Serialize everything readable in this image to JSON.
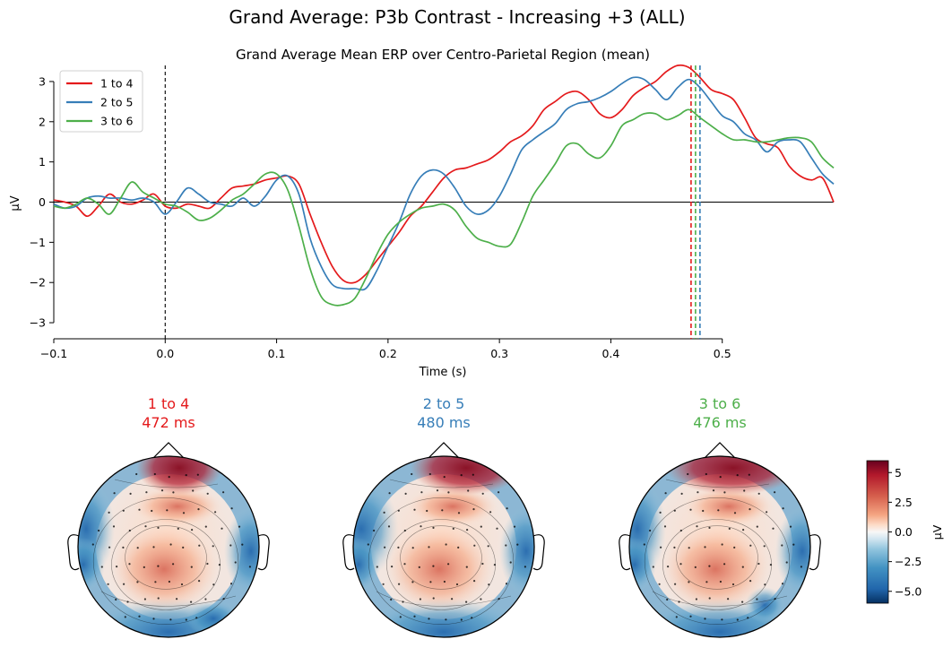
{
  "suptitle": "Grand Average: P3b Contrast - Increasing +3 (ALL)",
  "chart_data": [
    {
      "type": "line",
      "title": "Grand Average Mean ERP over Centro-Parietal Region (mean)",
      "xlabel": "Time (s)",
      "ylabel": "µV",
      "xlim": [
        -0.1,
        0.6
      ],
      "ylim": [
        -3.4,
        3.4
      ],
      "xticks": [
        -0.1,
        0.0,
        0.1,
        0.2,
        0.3,
        0.4,
        0.5
      ],
      "xtick_labels": [
        "−0.1",
        "0.0",
        "0.1",
        "0.2",
        "0.3",
        "0.4",
        "0.5"
      ],
      "yticks": [
        -3,
        -2,
        -1,
        0,
        1,
        2,
        3
      ],
      "ytick_labels": [
        "−3",
        "−2",
        "−1",
        "0",
        "1",
        "2",
        "3"
      ],
      "legend_position": "top-left",
      "stimulus_onset_marker": 0.0,
      "series": [
        {
          "name": "1 to 4",
          "color": "#e41a1c",
          "peak_latency": 0.472,
          "x": [
            -0.1,
            -0.09,
            -0.08,
            -0.07,
            -0.06,
            -0.05,
            -0.04,
            -0.03,
            -0.02,
            -0.01,
            0.0,
            0.01,
            0.02,
            0.03,
            0.04,
            0.05,
            0.06,
            0.07,
            0.08,
            0.09,
            0.1,
            0.11,
            0.12,
            0.13,
            0.14,
            0.15,
            0.16,
            0.17,
            0.18,
            0.19,
            0.2,
            0.21,
            0.22,
            0.23,
            0.24,
            0.25,
            0.26,
            0.27,
            0.28,
            0.29,
            0.3,
            0.31,
            0.32,
            0.33,
            0.34,
            0.35,
            0.36,
            0.37,
            0.38,
            0.39,
            0.4,
            0.41,
            0.42,
            0.43,
            0.44,
            0.45,
            0.46,
            0.47,
            0.48,
            0.49,
            0.5,
            0.51,
            0.52,
            0.53,
            0.54,
            0.55,
            0.56,
            0.57,
            0.58,
            0.59,
            0.6
          ],
          "y": [
            0.05,
            0.0,
            -0.1,
            -0.35,
            -0.1,
            0.2,
            0.0,
            -0.05,
            0.05,
            0.2,
            -0.1,
            -0.15,
            -0.05,
            -0.1,
            -0.15,
            0.1,
            0.35,
            0.4,
            0.45,
            0.55,
            0.6,
            0.65,
            0.45,
            -0.3,
            -1.0,
            -1.6,
            -1.95,
            -2.0,
            -1.8,
            -1.45,
            -1.1,
            -0.75,
            -0.35,
            -0.1,
            0.25,
            0.6,
            0.8,
            0.85,
            0.95,
            1.05,
            1.25,
            1.5,
            1.65,
            1.9,
            2.3,
            2.5,
            2.7,
            2.75,
            2.55,
            2.2,
            2.1,
            2.3,
            2.65,
            2.85,
            3.0,
            3.25,
            3.4,
            3.35,
            3.1,
            2.8,
            2.7,
            2.55,
            2.1,
            1.6,
            1.45,
            1.35,
            0.9,
            0.65,
            0.55,
            0.6,
            0.0
          ]
        },
        {
          "name": "2 to 5",
          "color": "#377eb8",
          "peak_latency": 0.48,
          "x": [
            -0.1,
            -0.09,
            -0.08,
            -0.07,
            -0.06,
            -0.05,
            -0.04,
            -0.03,
            -0.02,
            -0.01,
            0.0,
            0.01,
            0.02,
            0.03,
            0.04,
            0.05,
            0.06,
            0.07,
            0.08,
            0.09,
            0.1,
            0.11,
            0.12,
            0.13,
            0.14,
            0.15,
            0.16,
            0.17,
            0.18,
            0.19,
            0.2,
            0.21,
            0.22,
            0.23,
            0.24,
            0.25,
            0.26,
            0.27,
            0.28,
            0.29,
            0.3,
            0.31,
            0.32,
            0.33,
            0.34,
            0.35,
            0.36,
            0.37,
            0.38,
            0.39,
            0.4,
            0.41,
            0.42,
            0.43,
            0.44,
            0.45,
            0.46,
            0.47,
            0.48,
            0.49,
            0.5,
            0.51,
            0.52,
            0.53,
            0.54,
            0.55,
            0.56,
            0.57,
            0.58,
            0.59,
            0.6
          ],
          "y": [
            -0.05,
            -0.15,
            -0.1,
            0.1,
            0.15,
            0.1,
            0.1,
            0.05,
            0.1,
            0.0,
            -0.3,
            0.0,
            0.35,
            0.2,
            0.0,
            -0.05,
            -0.1,
            0.1,
            -0.1,
            0.15,
            0.55,
            0.65,
            0.2,
            -0.9,
            -1.6,
            -2.05,
            -2.15,
            -2.15,
            -2.15,
            -1.7,
            -1.1,
            -0.5,
            0.2,
            0.65,
            0.8,
            0.7,
            0.35,
            -0.1,
            -0.3,
            -0.2,
            0.15,
            0.7,
            1.3,
            1.55,
            1.75,
            1.95,
            2.3,
            2.45,
            2.5,
            2.6,
            2.75,
            2.95,
            3.1,
            3.05,
            2.8,
            2.55,
            2.85,
            3.05,
            2.85,
            2.5,
            2.15,
            2.0,
            1.7,
            1.55,
            1.25,
            1.5,
            1.55,
            1.5,
            1.1,
            0.7,
            0.45
          ]
        },
        {
          "name": "3 to 6",
          "color": "#4daf4a",
          "peak_latency": 0.476,
          "x": [
            -0.1,
            -0.09,
            -0.08,
            -0.07,
            -0.06,
            -0.05,
            -0.04,
            -0.03,
            -0.02,
            -0.01,
            0.0,
            0.01,
            0.02,
            0.03,
            0.04,
            0.05,
            0.06,
            0.07,
            0.08,
            0.09,
            0.1,
            0.11,
            0.12,
            0.13,
            0.14,
            0.15,
            0.16,
            0.17,
            0.18,
            0.19,
            0.2,
            0.21,
            0.22,
            0.23,
            0.24,
            0.25,
            0.26,
            0.27,
            0.28,
            0.29,
            0.3,
            0.31,
            0.32,
            0.33,
            0.34,
            0.35,
            0.36,
            0.37,
            0.38,
            0.39,
            0.4,
            0.41,
            0.42,
            0.43,
            0.44,
            0.45,
            0.46,
            0.47,
            0.48,
            0.49,
            0.5,
            0.51,
            0.52,
            0.53,
            0.54,
            0.55,
            0.56,
            0.57,
            0.58,
            0.59,
            0.6
          ],
          "y": [
            -0.1,
            -0.15,
            -0.05,
            0.1,
            -0.05,
            -0.3,
            0.1,
            0.5,
            0.25,
            0.1,
            -0.05,
            -0.1,
            -0.25,
            -0.45,
            -0.4,
            -0.2,
            0.05,
            0.2,
            0.45,
            0.7,
            0.7,
            0.3,
            -0.6,
            -1.65,
            -2.35,
            -2.55,
            -2.55,
            -2.4,
            -1.9,
            -1.3,
            -0.8,
            -0.5,
            -0.3,
            -0.15,
            -0.1,
            -0.05,
            -0.2,
            -0.6,
            -0.9,
            -1.0,
            -1.1,
            -1.05,
            -0.5,
            0.15,
            0.55,
            0.95,
            1.4,
            1.45,
            1.2,
            1.1,
            1.4,
            1.9,
            2.05,
            2.2,
            2.2,
            2.05,
            2.15,
            2.3,
            2.1,
            1.9,
            1.7,
            1.55,
            1.55,
            1.5,
            1.5,
            1.55,
            1.6,
            1.6,
            1.5,
            1.1,
            0.85
          ]
        }
      ]
    },
    {
      "type": "heatmap",
      "description_type": "topomap",
      "maps": [
        {
          "label": "1 to 4",
          "time": "472 ms",
          "color": "#e41a1c"
        },
        {
          "label": "2 to 5",
          "time": "480 ms",
          "color": "#377eb8"
        },
        {
          "label": "3 to 6",
          "time": "476 ms",
          "color": "#4daf4a"
        }
      ],
      "colorbar": {
        "label": "µV",
        "range": [
          -6,
          6
        ],
        "ticks": [
          5.0,
          2.5,
          0.0,
          -2.5,
          -5.0
        ],
        "tick_labels": [
          "5",
          "2.5",
          "0.0",
          "−2.5",
          "−5.0"
        ]
      }
    }
  ]
}
